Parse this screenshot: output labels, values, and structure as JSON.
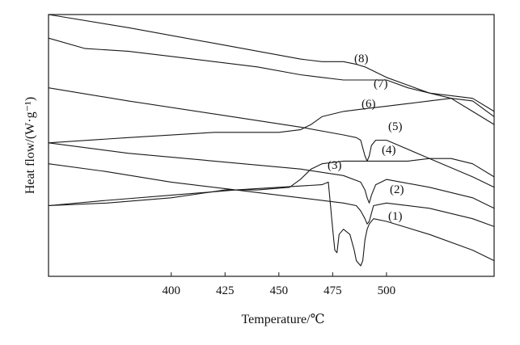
{
  "chart_data": {
    "type": "line",
    "title": "",
    "xlabel": "Temperature/℃",
    "ylabel": "Heat flow/(W·g⁻¹)",
    "xlim": [
      343,
      550
    ],
    "ylim": [
      0,
      100
    ],
    "x_ticks": [
      400,
      425,
      450,
      475,
      500
    ],
    "x_tick_labels": [
      "400",
      "425",
      "450",
      "475",
      "500"
    ],
    "y_ticks_shown": false,
    "grid": false,
    "legend": "none",
    "series": [
      {
        "name": "(1)",
        "x": [
          343,
          370,
          400,
          430,
          460,
          470,
          473,
          475,
          476,
          477,
          478,
          480,
          483,
          485,
          486,
          488,
          489,
          490,
          491,
          492,
          494,
          500,
          520,
          540,
          550
        ],
        "y": [
          27,
          29,
          31,
          33,
          34.5,
          35,
          36,
          18,
          10,
          9,
          16,
          18,
          16,
          10,
          6,
          4,
          6,
          14,
          18,
          20,
          22,
          21,
          16,
          10,
          6
        ]
      },
      {
        "name": "(2)",
        "x": [
          343,
          370,
          400,
          430,
          460,
          480,
          486,
          488,
          490,
          491,
          492,
          494,
          500,
          520,
          540,
          550
        ],
        "y": [
          43,
          40,
          36,
          33,
          30,
          28,
          27,
          25,
          22,
          20,
          21,
          27,
          28,
          26,
          22,
          19
        ]
      },
      {
        "name": "(3)",
        "x": [
          343,
          370,
          400,
          425,
          440,
          455,
          460,
          465,
          470,
          480,
          490,
          500,
          510,
          520,
          530,
          540,
          550
        ],
        "y": [
          27,
          28,
          30,
          33,
          33,
          34,
          37,
          41,
          43,
          44,
          44,
          44,
          44,
          45,
          45,
          43,
          38
        ]
      },
      {
        "name": "(4)",
        "x": [
          343,
          380,
          420,
          460,
          480,
          488,
          490,
          491,
          492,
          493,
          495,
          500,
          520,
          540,
          550
        ],
        "y": [
          51,
          47,
          44,
          41,
          38.5,
          36,
          33,
          30,
          28,
          31,
          35,
          37,
          34,
          30,
          26
        ]
      },
      {
        "name": "(5)",
        "x": [
          343,
          380,
          420,
          450,
          460,
          465,
          470,
          480,
          490,
          500,
          510,
          520,
          530,
          540,
          550
        ],
        "y": [
          51,
          53,
          55,
          55,
          56,
          58,
          61,
          63,
          64,
          65,
          66,
          67,
          68,
          67,
          61
        ]
      },
      {
        "name": "(6)",
        "x": [
          343,
          380,
          420,
          460,
          480,
          486,
          488,
          489,
          490,
          491,
          492,
          493,
          495,
          500,
          520,
          540,
          550
        ],
        "y": [
          72,
          67,
          62,
          57,
          54,
          53,
          52,
          49,
          46,
          44,
          46,
          50,
          52,
          52,
          45,
          38,
          34
        ]
      },
      {
        "name": "(7)",
        "x": [
          343,
          360,
          380,
          400,
          420,
          440,
          460,
          470,
          480,
          490,
          500,
          510,
          520,
          530,
          540,
          550
        ],
        "y": [
          91,
          87,
          86,
          84,
          82,
          80,
          77,
          76,
          75,
          75,
          75,
          72,
          70,
          69,
          68,
          63
        ]
      },
      {
        "name": "(8)",
        "x": [
          343,
          380,
          420,
          460,
          470,
          480,
          486,
          490,
          495,
          500,
          510,
          520,
          530,
          540,
          550
        ],
        "y": [
          100,
          95,
          89,
          83,
          82,
          82,
          81,
          80,
          78,
          76,
          73,
          70,
          68,
          63,
          58
        ]
      }
    ]
  }
}
